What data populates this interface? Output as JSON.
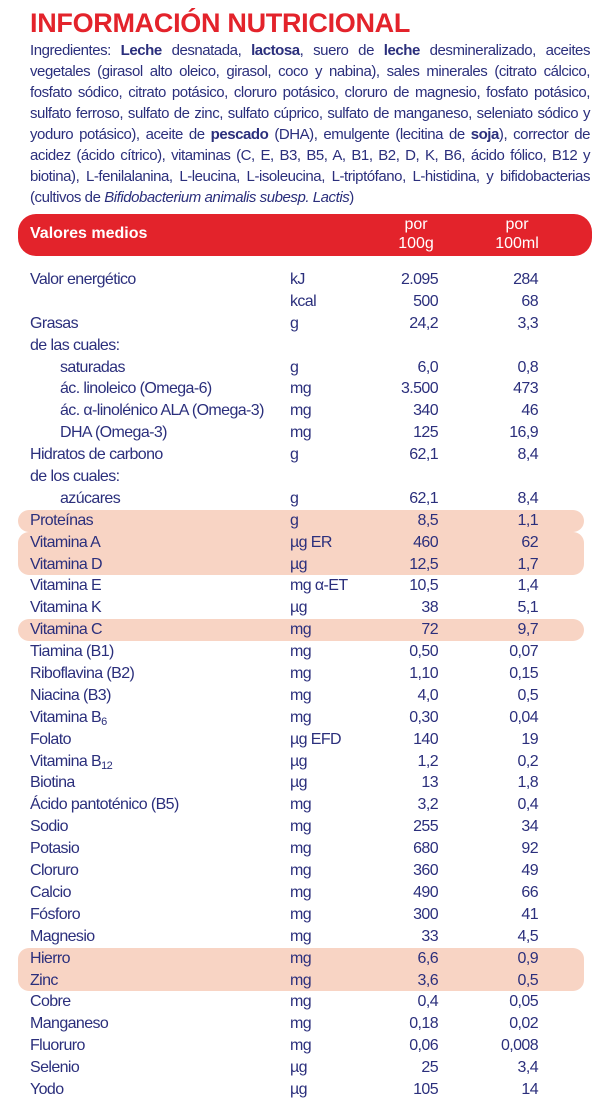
{
  "title": "INFORMACIÓN NUTRICIONAL",
  "ingredients": [
    {
      "t": "Ingredientes: "
    },
    {
      "t": "Leche",
      "b": true
    },
    {
      "t": " desnatada, "
    },
    {
      "t": "lactosa",
      "b": true
    },
    {
      "t": ", suero de "
    },
    {
      "t": "leche",
      "b": true
    },
    {
      "t": " desmineralizado, aceites vegetales (girasol alto oleico, girasol, coco y nabina), sales minerales (citrato cálcico, fosfato sódico, citrato potásico, cloruro potásico, cloruro de magnesio, fosfato potásico, sulfato ferroso, sulfato de zinc, sulfato cúprico, sulfato de manganeso, seleniato sódico y yoduro potásico), aceite de "
    },
    {
      "t": "pescado",
      "b": true
    },
    {
      "t": " (DHA), emulgente (lecitina de "
    },
    {
      "t": "soja",
      "b": true
    },
    {
      "t": "), corrector de acidez (ácido cítrico), vitaminas (C, E, B3, B5, A, B1, B2, D, K, B6, ácido fólico, B12 y biotina), L-fenilalanina, L-leucina, L-isoleucina, L-triptófano, L-histidina,  y bifidobacterias (cultivos de "
    },
    {
      "t": "Bifidobacterium animalis subesp. Lactis",
      "i": true
    },
    {
      "t": ")"
    }
  ],
  "table_header": {
    "label": "Valores medios",
    "col1_line1": "por",
    "col1_line2": "100g",
    "col2_line1": "por",
    "col2_line2": "100ml"
  },
  "colors": {
    "red": "#e3232b",
    "text": "#2b2f7c",
    "highlight": "#f8d4c4"
  },
  "rows": [
    {
      "label": "Valor energético",
      "unit": "kJ",
      "v1": "2.095",
      "v2": "284"
    },
    {
      "label": "",
      "unit": "kcal",
      "v1": "500",
      "v2": "68"
    },
    {
      "label": "Grasas",
      "unit": "g",
      "v1": "24,2",
      "v2": "3,3"
    },
    {
      "label": "de las cuales:",
      "unit": "",
      "v1": "",
      "v2": ""
    },
    {
      "label": "saturadas",
      "unit": "g",
      "v1": "6,0",
      "v2": "0,8",
      "indent": true
    },
    {
      "label": "ác. linoleico (Omega-6)",
      "unit": "mg",
      "v1": "3.500",
      "v2": "473",
      "indent": true
    },
    {
      "label": "ác. α-linolénico ALA (Omega-3)",
      "unit": "mg",
      "v1": "340",
      "v2": "46",
      "indent": true
    },
    {
      "label": "DHA (Omega-3)",
      "unit": "mg",
      "v1": "125",
      "v2": "16,9",
      "indent": true
    },
    {
      "label": "Hidratos de carbono",
      "unit": "g",
      "v1": "62,1",
      "v2": "8,4"
    },
    {
      "label": "de los cuales:",
      "unit": "",
      "v1": "",
      "v2": ""
    },
    {
      "label": "azúcares",
      "unit": "g",
      "v1": "62,1",
      "v2": "8,4",
      "indent": true
    },
    {
      "label": "Proteínas",
      "unit": "g",
      "v1": "8,5",
      "v2": "1,1",
      "hl": "single"
    },
    {
      "label": "Vitamina A",
      "unit": "µg ER",
      "v1": "460",
      "v2": "62",
      "hl": "top"
    },
    {
      "label": "Vitamina D",
      "unit": "µg",
      "v1": "12,5",
      "v2": "1,7",
      "hl": "bottom"
    },
    {
      "label": "Vitamina E",
      "unit": "mg α-ET",
      "v1": "10,5",
      "v2": "1,4"
    },
    {
      "label": "Vitamina K",
      "unit": "µg",
      "v1": "38",
      "v2": "5,1"
    },
    {
      "label": "Vitamina C",
      "unit": "mg",
      "v1": "72",
      "v2": "9,7",
      "hl": "single"
    },
    {
      "label": "Tiamina (B1)",
      "unit": "mg",
      "v1": "0,50",
      "v2": "0,07"
    },
    {
      "label": "Riboflavina (B2)",
      "unit": "mg",
      "v1": "1,10",
      "v2": "0,15"
    },
    {
      "label": "Niacina (B3)",
      "unit": "mg",
      "v1": "4,0",
      "v2": "0,5"
    },
    {
      "label": "Vitamina B",
      "sub": "6",
      "unit": "mg",
      "v1": "0,30",
      "v2": "0,04"
    },
    {
      "label": "Folato",
      "unit": "µg EFD",
      "v1": "140",
      "v2": "19"
    },
    {
      "label": "Vitamina B",
      "sub": "12",
      "unit": "µg",
      "v1": "1,2",
      "v2": "0,2"
    },
    {
      "label": "Biotina",
      "unit": "µg",
      "v1": "13",
      "v2": "1,8"
    },
    {
      "label": "Ácido pantoténico (B5)",
      "unit": "mg",
      "v1": "3,2",
      "v2": "0,4"
    },
    {
      "label": "Sodio",
      "unit": "mg",
      "v1": "255",
      "v2": "34"
    },
    {
      "label": "Potasio",
      "unit": "mg",
      "v1": "680",
      "v2": "92"
    },
    {
      "label": "Cloruro",
      "unit": "mg",
      "v1": "360",
      "v2": "49"
    },
    {
      "label": "Calcio",
      "unit": "mg",
      "v1": "490",
      "v2": "66"
    },
    {
      "label": "Fósforo",
      "unit": "mg",
      "v1": "300",
      "v2": "41"
    },
    {
      "label": "Magnesio",
      "unit": "mg",
      "v1": "33",
      "v2": "4,5"
    },
    {
      "label": "Hierro",
      "unit": "mg",
      "v1": "6,6",
      "v2": "0,9",
      "hl": "top"
    },
    {
      "label": "Zinc",
      "unit": "mg",
      "v1": "3,6",
      "v2": "0,5",
      "hl": "bottom"
    },
    {
      "label": "Cobre",
      "unit": "mg",
      "v1": "0,4",
      "v2": "0,05"
    },
    {
      "label": "Manganeso",
      "unit": "mg",
      "v1": "0,18",
      "v2": "0,02"
    },
    {
      "label": "Fluoruro",
      "unit": "mg",
      "v1": "0,06",
      "v2": "0,008"
    },
    {
      "label": "Selenio",
      "unit": "µg",
      "v1": "25",
      "v2": "3,4"
    },
    {
      "label": "Yodo",
      "unit": "µg",
      "v1": "105",
      "v2": "14"
    }
  ]
}
